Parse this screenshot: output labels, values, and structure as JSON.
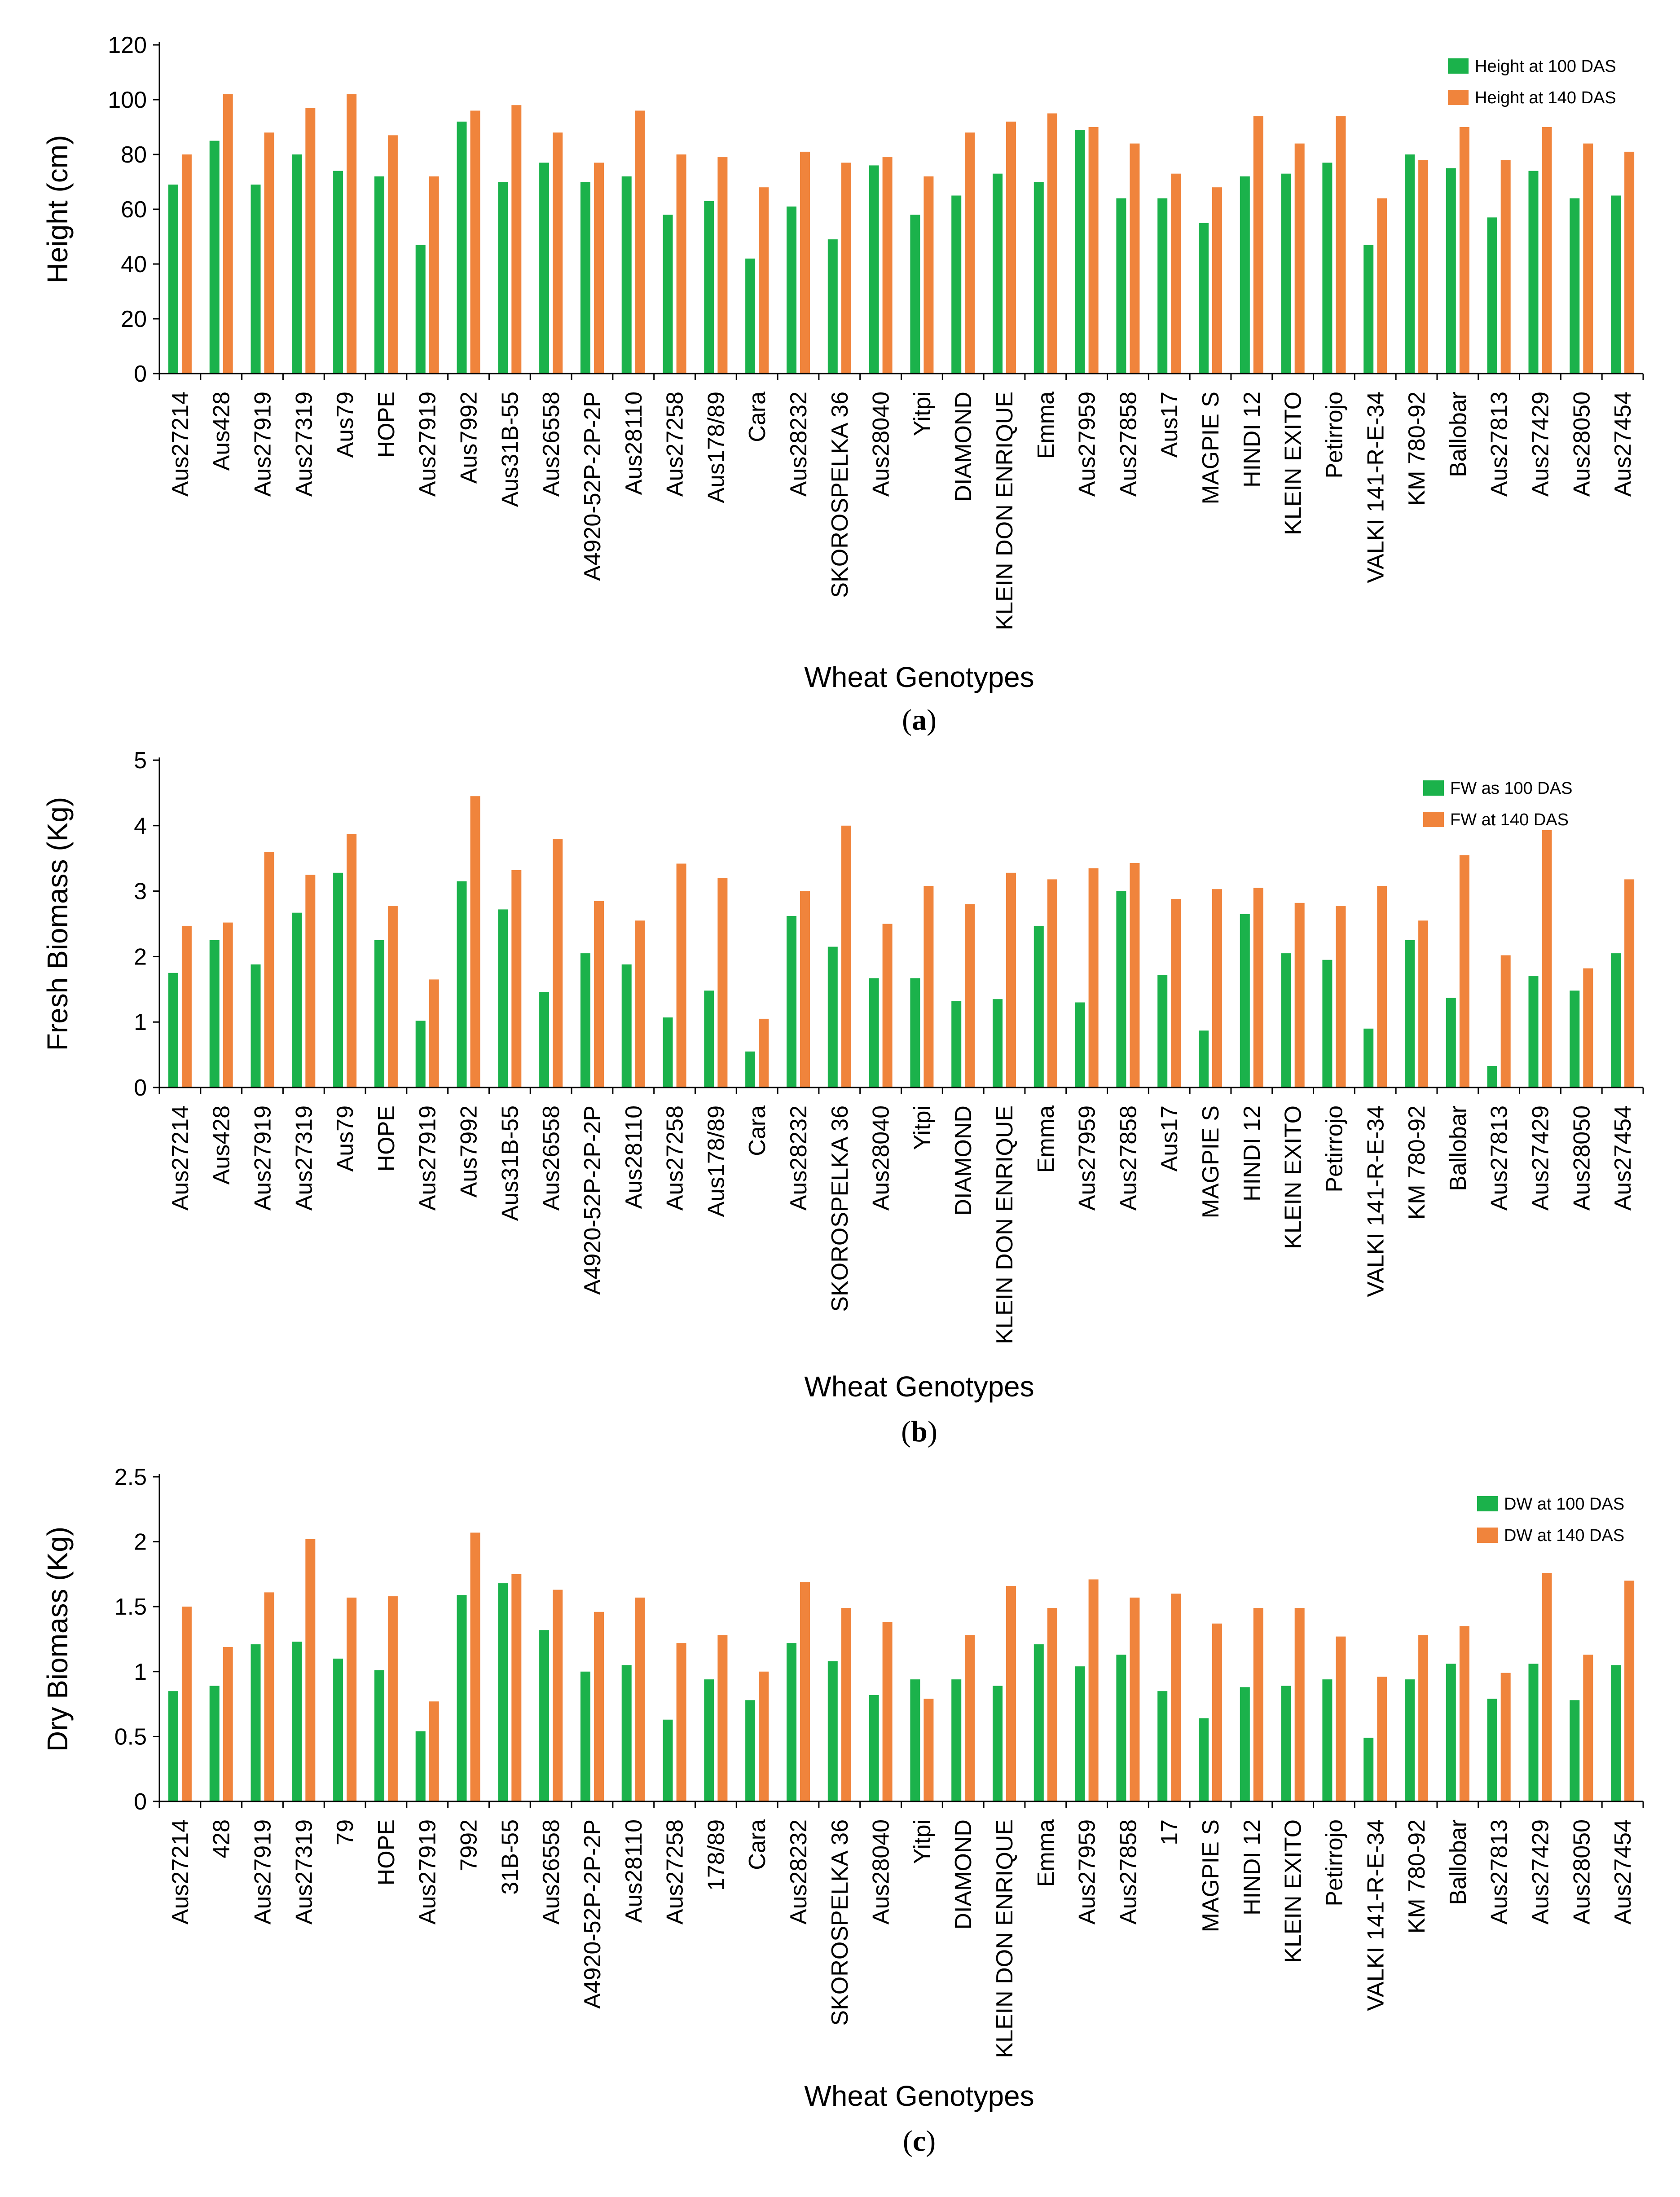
{
  "colors": {
    "series1": "#1BB24B",
    "series2": "#F0843C",
    "axis": "#000000"
  },
  "chart_data": [
    {
      "type": "bar",
      "panel": "a",
      "ylabel": "Height (cm)",
      "xlabel": "Wheat Genotypes",
      "ylim": [
        0,
        120
      ],
      "yticks": [
        0,
        20,
        40,
        60,
        80,
        100,
        120
      ],
      "ytick_labels": [
        "0",
        "20",
        "40",
        "60",
        "80",
        "100",
        "120"
      ],
      "legend_position": "top-right",
      "categories": [
        "Aus27214",
        "Aus428",
        "Aus27919",
        "Aus27319",
        "Aus79",
        "HOPE",
        "Aus27919",
        "Aus7992",
        "Aus31B-55",
        "Aus26558",
        "A4920-52P-2P-2P",
        "Aus28110",
        "Aus27258",
        "Aus178/89",
        "Cara",
        "Aus28232",
        "SKOROSPELKA 36",
        "Aus28040",
        "Yitpi",
        "DIAMOND",
        "KLEIN DON ENRIQUE",
        "Emma",
        "Aus27959",
        "Aus27858",
        "Aus17",
        "MAGPIE S",
        "HINDI 12",
        "KLEIN EXITO",
        "Petirrojo",
        "VALKI 141-R-E-34",
        "KM 780-92",
        "Ballobar",
        "Aus27813",
        "Aus27429",
        "Aus28050",
        "Aus27454"
      ],
      "series": [
        {
          "name": "Height at 100 DAS",
          "values": [
            69,
            85,
            69,
            80,
            74,
            72,
            47,
            92,
            70,
            77,
            70,
            72,
            58,
            63,
            42,
            61,
            49,
            76,
            58,
            65,
            73,
            70,
            89,
            64,
            64,
            55,
            72,
            73,
            77,
            47,
            80,
            75,
            57,
            74,
            64,
            65
          ]
        },
        {
          "name": "Height at 140 DAS",
          "values": [
            80,
            102,
            88,
            97,
            102,
            87,
            72,
            96,
            98,
            88,
            77,
            96,
            80,
            79,
            68,
            81,
            77,
            79,
            72,
            88,
            92,
            95,
            90,
            84,
            73,
            68,
            94,
            84,
            94,
            64,
            78,
            90,
            78,
            90,
            84,
            81
          ]
        }
      ]
    },
    {
      "type": "bar",
      "panel": "b",
      "ylabel": "Fresh Biomass (Kg)",
      "xlabel": "Wheat Genotypes",
      "ylim": [
        0,
        5
      ],
      "yticks": [
        0,
        1,
        2,
        3,
        4,
        5
      ],
      "ytick_labels": [
        "0",
        "1",
        "2",
        "3",
        "4",
        "5"
      ],
      "legend_position": "top-right",
      "categories": [
        "Aus27214",
        "Aus428",
        "Aus27919",
        "Aus27319",
        "Aus79",
        "HOPE",
        "Aus27919",
        "Aus7992",
        "Aus31B-55",
        "Aus26558",
        "A4920-52P-2P-2P",
        "Aus28110",
        "Aus27258",
        "Aus178/89",
        "Cara",
        "Aus28232",
        "SKOROSPELKA 36",
        "Aus28040",
        "Yitpi",
        "DIAMOND",
        "KLEIN DON ENRIQUE",
        "Emma",
        "Aus27959",
        "Aus27858",
        "Aus17",
        "MAGPIE S",
        "HINDI 12",
        "KLEIN EXITO",
        "Petirrojo",
        "VALKI 141-R-E-34",
        "KM 780-92",
        "Ballobar",
        "Aus27813",
        "Aus27429",
        "Aus28050",
        "Aus27454"
      ],
      "series": [
        {
          "name": "FW as 100 DAS",
          "values": [
            1.75,
            2.25,
            1.88,
            2.67,
            3.28,
            2.25,
            1.02,
            3.15,
            2.72,
            1.46,
            2.05,
            1.88,
            1.07,
            1.48,
            0.55,
            2.62,
            2.15,
            1.67,
            1.67,
            1.32,
            1.35,
            2.47,
            1.3,
            3.0,
            1.72,
            0.87,
            2.65,
            2.05,
            1.95,
            0.9,
            2.25,
            1.37,
            0.33,
            1.7,
            1.48,
            2.05
          ]
        },
        {
          "name": "FW at 140 DAS",
          "values": [
            2.47,
            2.52,
            3.6,
            3.25,
            3.87,
            2.77,
            1.65,
            4.45,
            3.32,
            3.8,
            2.85,
            2.55,
            3.42,
            3.2,
            1.05,
            3.0,
            4.0,
            2.5,
            3.08,
            2.8,
            3.28,
            3.18,
            3.35,
            3.43,
            2.88,
            3.03,
            3.05,
            2.82,
            2.77,
            3.08,
            2.55,
            3.55,
            2.02,
            3.93,
            1.82,
            3.18
          ]
        }
      ]
    },
    {
      "type": "bar",
      "panel": "c",
      "ylabel": "Dry Biomass (Kg)",
      "xlabel": "Wheat Genotypes",
      "ylim": [
        0,
        2.5
      ],
      "yticks": [
        0,
        0.5,
        1,
        1.5,
        2,
        2.5
      ],
      "ytick_labels": [
        "0",
        "0.5",
        "1",
        "1.5",
        "2",
        "2.5"
      ],
      "legend_position": "top-right",
      "categories": [
        "Aus27214",
        "428",
        "Aus27919",
        "Aus27319",
        "79",
        "HOPE",
        "Aus27919",
        "7992",
        "31B-55",
        "Aus26558",
        "A4920-52P-2P-2P",
        "Aus28110",
        "Aus27258",
        "178/89",
        "Cara",
        "Aus28232",
        "SKOROSPELKA 36",
        "Aus28040",
        "Yitpi",
        "DIAMOND",
        "KLEIN DON ENRIQUE",
        "Emma",
        "Aus27959",
        "Aus27858",
        "17",
        "MAGPIE S",
        "HINDI 12",
        "KLEIN EXITO",
        "Petirrojo",
        "VALKI 141-R-E-34",
        "KM 780-92",
        "Ballobar",
        "Aus27813",
        "Aus27429",
        "Aus28050",
        "Aus27454"
      ],
      "series": [
        {
          "name": "DW at 100 DAS",
          "values": [
            0.85,
            0.89,
            1.21,
            1.23,
            1.1,
            1.01,
            0.54,
            1.59,
            1.68,
            1.32,
            1.0,
            1.05,
            0.63,
            0.94,
            0.78,
            1.22,
            1.08,
            0.82,
            0.94,
            0.94,
            0.89,
            1.21,
            1.04,
            1.13,
            0.85,
            0.64,
            0.88,
            0.89,
            0.94,
            0.49,
            0.94,
            1.06,
            0.79,
            1.06,
            0.78,
            1.05
          ]
        },
        {
          "name": "DW at 140 DAS",
          "values": [
            1.5,
            1.19,
            1.61,
            2.02,
            1.57,
            1.58,
            0.77,
            2.07,
            1.75,
            1.63,
            1.46,
            1.57,
            1.22,
            1.28,
            1.0,
            1.69,
            1.49,
            1.38,
            0.79,
            1.28,
            1.66,
            1.49,
            1.71,
            1.57,
            1.6,
            1.37,
            1.49,
            1.49,
            1.27,
            0.96,
            1.28,
            1.35,
            0.99,
            1.76,
            1.13,
            1.7
          ]
        }
      ]
    }
  ]
}
